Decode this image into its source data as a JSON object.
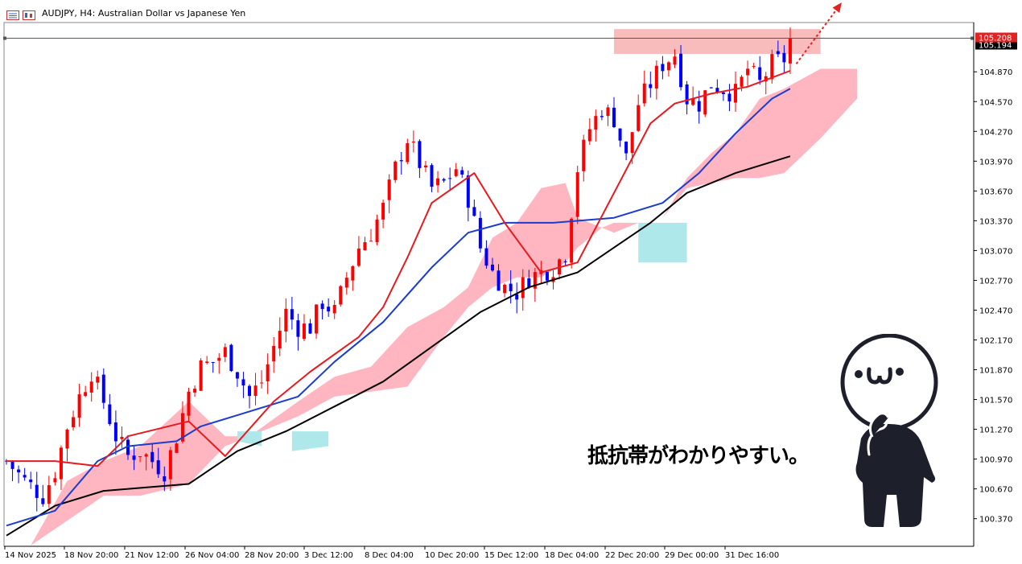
{
  "window": {
    "title": "AUDJPY, H4:  Australian Dollar vs Japanese Yen"
  },
  "caption": "抵抗帯がわかりやすい。",
  "colors": {
    "bull_candle": "#ff0000",
    "bear_candle": "#0000ff",
    "ma_short": "#e8191f",
    "ma_mid": "#1a3ccf",
    "ma_long": "#000000",
    "cloud_bull": "#ffb6c1",
    "cloud_bear": "#aee8ea",
    "resistance_zone": "#f7b0b0",
    "price_line": "#d32020"
  },
  "chart_data": {
    "type": "candlestick",
    "symbol": "AUDJPY",
    "timeframe": "H4",
    "ylim": [
      100.1,
      105.35
    ],
    "y_ticks": [
      "104.870",
      "104.570",
      "104.270",
      "103.970",
      "103.670",
      "103.370",
      "103.070",
      "102.770",
      "102.470",
      "102.170",
      "101.870",
      "101.570",
      "101.270",
      "100.970",
      "100.670",
      "100.370"
    ],
    "x_ticks": [
      "14 Nov 2025",
      "18 Nov 20:00",
      "21 Nov 12:00",
      "26 Nov 04:00",
      "28 Nov 20:00",
      "3 Dec 12:00",
      "8 Dec 04:00",
      "10 Dec 20:00",
      "15 Dec 12:00",
      "18 Dec 04:00",
      "22 Dec 20:00",
      "29 Dec 00:00",
      "31 Dec 16:00"
    ],
    "current_price": "105.208",
    "current_price_2": "105.194",
    "horizontal_line": 105.208,
    "resistance_zone": [
      105.05,
      105.3
    ],
    "close_path": [
      [
        0,
        100.95
      ],
      [
        3,
        100.75
      ],
      [
        6,
        100.6
      ],
      [
        8,
        100.85
      ],
      [
        10,
        101.3
      ],
      [
        12,
        101.6
      ],
      [
        14,
        101.85
      ],
      [
        16,
        101.55
      ],
      [
        18,
        101.2
      ],
      [
        20,
        101.0
      ],
      [
        22,
        101.05
      ],
      [
        24,
        100.95
      ],
      [
        26,
        100.85
      ],
      [
        28,
        101.2
      ],
      [
        30,
        101.65
      ],
      [
        32,
        101.9
      ],
      [
        34,
        101.95
      ],
      [
        36,
        102.05
      ],
      [
        38,
        101.85
      ],
      [
        40,
        101.6
      ],
      [
        42,
        101.75
      ],
      [
        44,
        102.1
      ],
      [
        46,
        102.45
      ],
      [
        48,
        102.3
      ],
      [
        50,
        102.3
      ],
      [
        52,
        102.55
      ],
      [
        54,
        102.45
      ],
      [
        56,
        102.8
      ],
      [
        58,
        103.1
      ],
      [
        60,
        103.25
      ],
      [
        62,
        103.5
      ],
      [
        64,
        103.9
      ],
      [
        66,
        104.2
      ],
      [
        68,
        103.95
      ],
      [
        70,
        103.7
      ],
      [
        72,
        103.75
      ],
      [
        74,
        103.9
      ],
      [
        76,
        103.6
      ],
      [
        78,
        103.1
      ],
      [
        80,
        102.85
      ],
      [
        82,
        102.7
      ],
      [
        84,
        102.65
      ],
      [
        86,
        102.8
      ],
      [
        88,
        102.85
      ],
      [
        90,
        102.9
      ],
      [
        92,
        103.05
      ],
      [
        94,
        103.9
      ],
      [
        96,
        104.3
      ],
      [
        98,
        104.5
      ],
      [
        100,
        104.4
      ],
      [
        102,
        104.0
      ],
      [
        104,
        104.55
      ],
      [
        106,
        104.75
      ],
      [
        108,
        104.95
      ],
      [
        110,
        105.05
      ],
      [
        112,
        104.6
      ],
      [
        114,
        104.55
      ],
      [
        116,
        104.75
      ],
      [
        118,
        104.7
      ],
      [
        120,
        104.65
      ],
      [
        122,
        104.9
      ],
      [
        124,
        104.75
      ],
      [
        126,
        104.95
      ],
      [
        128,
        105.0
      ],
      [
        129,
        105.19
      ]
    ],
    "ma_short_points": [
      [
        0,
        100.95
      ],
      [
        8,
        100.95
      ],
      [
        15,
        100.9
      ],
      [
        20,
        101.2
      ],
      [
        30,
        101.35
      ],
      [
        36,
        101.0
      ],
      [
        44,
        101.55
      ],
      [
        50,
        101.85
      ],
      [
        58,
        102.2
      ],
      [
        62,
        102.5
      ],
      [
        66,
        103.0
      ],
      [
        70,
        103.55
      ],
      [
        77,
        103.85
      ],
      [
        82,
        103.35
      ],
      [
        88,
        102.85
      ],
      [
        94,
        102.95
      ],
      [
        100,
        103.65
      ],
      [
        106,
        104.35
      ],
      [
        110,
        104.55
      ],
      [
        116,
        104.65
      ],
      [
        122,
        104.72
      ],
      [
        129,
        104.88
      ]
    ],
    "ma_mid_points": [
      [
        0,
        100.3
      ],
      [
        8,
        100.45
      ],
      [
        15,
        100.95
      ],
      [
        20,
        101.1
      ],
      [
        28,
        101.15
      ],
      [
        32,
        101.3
      ],
      [
        40,
        101.45
      ],
      [
        48,
        101.6
      ],
      [
        54,
        101.95
      ],
      [
        62,
        102.35
      ],
      [
        70,
        102.9
      ],
      [
        76,
        103.25
      ],
      [
        82,
        103.35
      ],
      [
        90,
        103.35
      ],
      [
        100,
        103.4
      ],
      [
        108,
        103.55
      ],
      [
        114,
        103.85
      ],
      [
        120,
        104.25
      ],
      [
        126,
        104.6
      ],
      [
        129,
        104.7
      ]
    ],
    "ma_long_points": [
      [
        0,
        100.2
      ],
      [
        8,
        100.5
      ],
      [
        16,
        100.65
      ],
      [
        30,
        100.72
      ],
      [
        38,
        101.05
      ],
      [
        46,
        101.25
      ],
      [
        54,
        101.5
      ],
      [
        62,
        101.75
      ],
      [
        70,
        102.1
      ],
      [
        78,
        102.45
      ],
      [
        86,
        102.7
      ],
      [
        94,
        102.85
      ],
      [
        100,
        103.1
      ],
      [
        106,
        103.35
      ],
      [
        112,
        103.65
      ],
      [
        120,
        103.85
      ],
      [
        129,
        104.02
      ]
    ],
    "cloud_bull_top": [
      [
        4,
        100.1
      ],
      [
        10,
        100.75
      ],
      [
        16,
        100.95
      ],
      [
        22,
        101.1
      ],
      [
        30,
        101.55
      ],
      [
        36,
        101.2
      ],
      [
        40,
        101.2
      ],
      [
        48,
        101.55
      ],
      [
        54,
        101.8
      ],
      [
        60,
        101.9
      ],
      [
        66,
        102.3
      ],
      [
        72,
        102.5
      ],
      [
        76,
        102.7
      ],
      [
        80,
        103.2
      ],
      [
        84,
        103.35
      ],
      [
        88,
        103.7
      ],
      [
        92,
        103.75
      ],
      [
        94,
        103.4
      ],
      [
        98,
        103.3
      ],
      [
        100,
        103.25
      ],
      [
        104,
        103.35
      ],
      [
        108,
        103.4
      ],
      [
        112,
        103.8
      ],
      [
        116,
        104.05
      ],
      [
        120,
        104.25
      ],
      [
        124,
        104.6
      ],
      [
        128,
        104.7
      ],
      [
        134,
        104.9
      ],
      [
        140,
        104.9
      ]
    ],
    "cloud_bull_bottom": [
      [
        4,
        100.1
      ],
      [
        10,
        100.35
      ],
      [
        16,
        100.6
      ],
      [
        22,
        100.6
      ],
      [
        30,
        100.72
      ],
      [
        36,
        101.1
      ],
      [
        40,
        101.2
      ],
      [
        48,
        101.4
      ],
      [
        54,
        101.6
      ],
      [
        60,
        101.65
      ],
      [
        66,
        101.7
      ],
      [
        72,
        102.2
      ],
      [
        76,
        102.5
      ],
      [
        80,
        102.7
      ],
      [
        84,
        102.8
      ],
      [
        88,
        102.8
      ],
      [
        92,
        102.95
      ],
      [
        94,
        103.1
      ],
      [
        98,
        103.3
      ],
      [
        100,
        103.35
      ],
      [
        104,
        103.35
      ],
      [
        108,
        103.4
      ],
      [
        112,
        103.7
      ],
      [
        116,
        103.75
      ],
      [
        120,
        103.8
      ],
      [
        124,
        103.8
      ],
      [
        128,
        103.85
      ],
      [
        134,
        104.2
      ],
      [
        140,
        104.6
      ]
    ],
    "cloud_bear_regions": [
      [
        [
          38,
          101.25
        ],
        [
          42,
          101.25
        ],
        [
          42,
          101.1
        ],
        [
          38,
          101.15
        ]
      ],
      [
        [
          47,
          101.25
        ],
        [
          53,
          101.25
        ],
        [
          53,
          101.1
        ],
        [
          47,
          101.05
        ]
      ],
      [
        [
          104,
          103.35
        ],
        [
          112,
          103.35
        ],
        [
          112,
          102.95
        ],
        [
          104,
          102.95
        ]
      ]
    ],
    "projection_arrow": [
      [
        130,
        104.95
      ],
      [
        137,
        105.55
      ]
    ]
  }
}
